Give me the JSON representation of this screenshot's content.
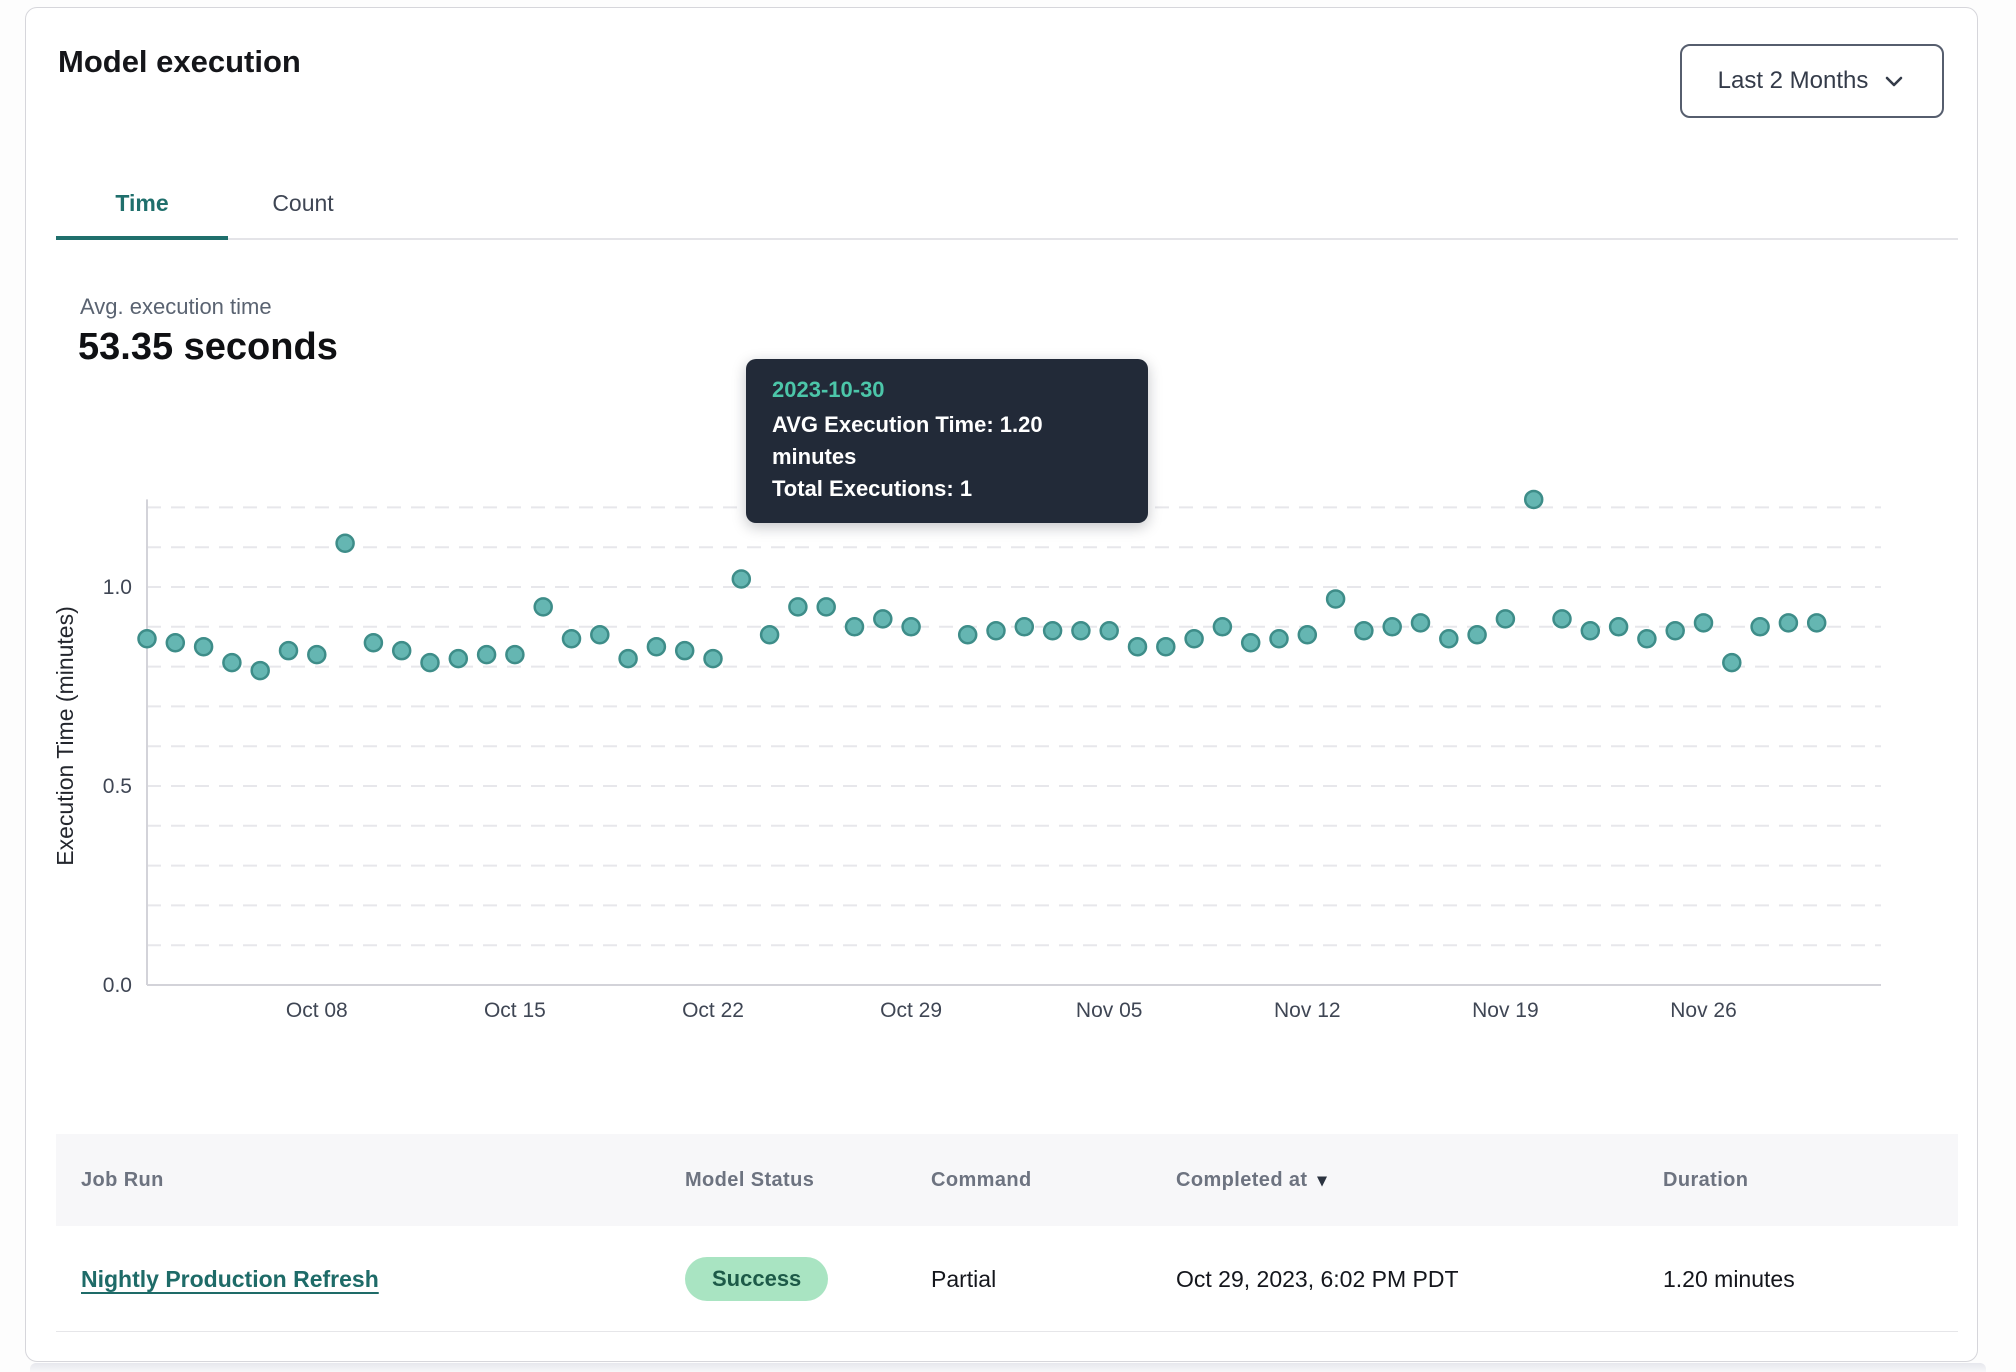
{
  "header": {
    "title": "Model execution",
    "range_selector": {
      "label": "Last 2 Months"
    }
  },
  "tabs": [
    {
      "label": "Time",
      "active": true
    },
    {
      "label": "Count",
      "active": false
    }
  ],
  "summary": {
    "label": "Avg. execution time",
    "value": "53.35 seconds"
  },
  "tooltip": {
    "date": "2023-10-30",
    "line1": "AVG Execution Time: 1.20 minutes",
    "line2": "Total Executions: 1"
  },
  "chart_data": {
    "type": "scatter",
    "title": "",
    "xlabel": "",
    "ylabel": "Execution Time (minutes)",
    "ylim": [
      0,
      1.25
    ],
    "yticks": [
      0.0,
      0.5,
      1.0
    ],
    "grid": "dashed horizontal lines every 0.1 minutes",
    "legend": "none",
    "point_color": "#65b6b2",
    "point_stroke": "#3e8d89",
    "highlight_color": "#2f6b71",
    "highlight_date": "2023-10-30",
    "highlight_value": 1.2,
    "xticks": [
      {
        "label": "Oct 08",
        "date": "2023-10-08"
      },
      {
        "label": "Oct 15",
        "date": "2023-10-15"
      },
      {
        "label": "Oct 22",
        "date": "2023-10-22"
      },
      {
        "label": "Oct 29",
        "date": "2023-10-29"
      },
      {
        "label": "Nov 05",
        "date": "2023-11-05"
      },
      {
        "label": "Nov 12",
        "date": "2023-11-12"
      },
      {
        "label": "Nov 19",
        "date": "2023-11-19"
      },
      {
        "label": "Nov 26",
        "date": "2023-11-26"
      }
    ],
    "x": [
      "2023-10-02",
      "2023-10-03",
      "2023-10-04",
      "2023-10-05",
      "2023-10-06",
      "2023-10-07",
      "2023-10-08",
      "2023-10-09",
      "2023-10-10",
      "2023-10-11",
      "2023-10-12",
      "2023-10-13",
      "2023-10-14",
      "2023-10-15",
      "2023-10-16",
      "2023-10-17",
      "2023-10-18",
      "2023-10-19",
      "2023-10-20",
      "2023-10-21",
      "2023-10-22",
      "2023-10-23",
      "2023-10-24",
      "2023-10-25",
      "2023-10-26",
      "2023-10-27",
      "2023-10-28",
      "2023-10-29",
      "2023-10-30",
      "2023-10-31",
      "2023-11-01",
      "2023-11-02",
      "2023-11-03",
      "2023-11-04",
      "2023-11-05",
      "2023-11-06",
      "2023-11-07",
      "2023-11-08",
      "2023-11-09",
      "2023-11-10",
      "2023-11-11",
      "2023-11-12",
      "2023-11-13",
      "2023-11-14",
      "2023-11-15",
      "2023-11-16",
      "2023-11-17",
      "2023-11-18",
      "2023-11-19",
      "2023-11-20",
      "2023-11-21",
      "2023-11-22",
      "2023-11-23",
      "2023-11-24",
      "2023-11-25",
      "2023-11-26",
      "2023-11-27",
      "2023-11-28",
      "2023-11-29",
      "2023-11-30"
    ],
    "values": [
      0.87,
      0.86,
      0.85,
      0.81,
      0.79,
      0.84,
      0.83,
      1.11,
      0.86,
      0.84,
      0.81,
      0.82,
      0.83,
      0.83,
      0.95,
      0.87,
      0.88,
      0.82,
      0.85,
      0.84,
      0.82,
      1.02,
      0.88,
      0.95,
      0.95,
      0.9,
      0.92,
      0.9,
      1.2,
      0.88,
      0.89,
      0.9,
      0.89,
      0.89,
      0.89,
      0.85,
      0.85,
      0.87,
      0.9,
      0.86,
      0.87,
      0.88,
      0.97,
      0.89,
      0.9,
      0.91,
      0.87,
      0.88,
      0.92,
      1.22,
      0.92,
      0.89,
      0.9,
      0.87,
      0.89,
      0.91,
      0.81,
      0.9,
      0.91,
      0.91
    ]
  },
  "table": {
    "columns": [
      {
        "label": "Job Run"
      },
      {
        "label": "Model Status"
      },
      {
        "label": "Command"
      },
      {
        "label": "Completed at",
        "sorted": "desc"
      },
      {
        "label": "Duration"
      }
    ],
    "rows": [
      {
        "job_run": "Nightly Production Refresh",
        "model_status": "Success",
        "command": "Partial",
        "completed_at": "Oct 29, 2023, 6:02 PM PDT",
        "duration": "1.20 minutes"
      }
    ]
  },
  "colors": {
    "accent_teal": "#1f6f6c",
    "link": "#1e6b68",
    "badge_bg": "#a9e4c2",
    "badge_text": "#1d5a48",
    "tooltip_bg": "#222a38",
    "tooltip_accent": "#4cc6a9",
    "point": "#65b6b2",
    "highlight_point": "#2f6b71"
  }
}
